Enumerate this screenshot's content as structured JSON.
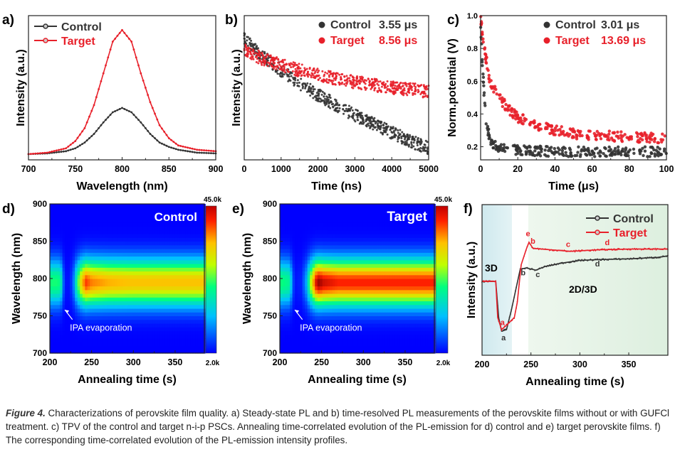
{
  "caption": {
    "label": "Figure 4.",
    "text": " Characterizations of perovskite film quality. a) Steady-state PL and b) time-resolved PL measurements of the perovskite films without or with GUFCl treatment. c) TPV of the control and target n-i-p PSCs. Annealing time-correlated evolution of the PL-emission for d) control and e) target perovskite films. f) The corresponding time-correlated evolution of the PL-emission intensity profiles."
  },
  "colors": {
    "control": "#333333",
    "target": "#e8202a"
  },
  "chart_data": [
    {
      "panel": "a)",
      "type": "line",
      "xlabel": "Wavelength (nm)",
      "ylabel": "Intensity (a.u.)",
      "xlim": [
        700,
        900
      ],
      "ylim": [
        0,
        1
      ],
      "xticks": [
        "700",
        "750",
        "800",
        "850",
        "900"
      ],
      "yticks": [],
      "legend": "top-left",
      "x": [
        700,
        720,
        740,
        750,
        760,
        770,
        780,
        790,
        800,
        810,
        820,
        830,
        840,
        850,
        860,
        880,
        900
      ],
      "series": [
        {
          "name": "Control",
          "values": [
            0.04,
            0.045,
            0.06,
            0.08,
            0.12,
            0.18,
            0.26,
            0.33,
            0.36,
            0.33,
            0.26,
            0.18,
            0.12,
            0.09,
            0.07,
            0.05,
            0.045
          ]
        },
        {
          "name": "Target",
          "values": [
            0.04,
            0.05,
            0.08,
            0.13,
            0.22,
            0.38,
            0.6,
            0.82,
            0.9,
            0.82,
            0.6,
            0.4,
            0.24,
            0.15,
            0.1,
            0.07,
            0.06
          ]
        }
      ]
    },
    {
      "panel": "b)",
      "type": "scatter",
      "xlabel": "Time (ns)",
      "ylabel": "Intensity (a.u.)",
      "xlim": [
        0,
        5000
      ],
      "ylim": [
        0,
        1
      ],
      "xticks": [
        "0",
        "1000",
        "2000",
        "3000",
        "4000",
        "5000"
      ],
      "yticks": [],
      "legend": "top-right",
      "x": [
        0,
        500,
        1000,
        1500,
        2000,
        2500,
        3000,
        3500,
        4000,
        4500,
        5000
      ],
      "series": [
        {
          "name": "Control",
          "lifetime": "3.55 μs",
          "values": [
            0.84,
            0.72,
            0.62,
            0.53,
            0.45,
            0.38,
            0.31,
            0.25,
            0.19,
            0.13,
            0.08
          ]
        },
        {
          "name": "Target",
          "lifetime": "8.56 μs",
          "values": [
            0.76,
            0.7,
            0.66,
            0.62,
            0.59,
            0.56,
            0.54,
            0.52,
            0.5,
            0.49,
            0.47
          ]
        }
      ]
    },
    {
      "panel": "c)",
      "type": "scatter",
      "xlabel": "Time (μs)",
      "ylabel": "Norm.potential (V)",
      "xlim": [
        0,
        100
      ],
      "ylim": [
        0.12,
        1.0
      ],
      "xticks": [
        "0",
        "20",
        "40",
        "60",
        "80",
        "100"
      ],
      "yticks": [
        "0.2",
        "0.4",
        "0.6",
        "0.8",
        "1.0"
      ],
      "legend": "top-right",
      "series": [
        {
          "name": "Control",
          "lifetime": "3.01 μs",
          "x": [
            0,
            1,
            2,
            3,
            5,
            8,
            10,
            20,
            40,
            60,
            80,
            100
          ],
          "values": [
            0.95,
            0.7,
            0.5,
            0.35,
            0.25,
            0.2,
            0.19,
            0.18,
            0.17,
            0.17,
            0.17,
            0.17
          ]
        },
        {
          "name": "Target",
          "lifetime": "13.69 μs",
          "x": [
            0,
            2,
            5,
            10,
            15,
            20,
            30,
            40,
            50,
            60,
            80,
            100
          ],
          "values": [
            0.98,
            0.8,
            0.6,
            0.5,
            0.43,
            0.38,
            0.33,
            0.3,
            0.28,
            0.27,
            0.26,
            0.25
          ]
        }
      ]
    },
    {
      "panel": "d)",
      "type": "heatmap",
      "label": "Control",
      "xlabel": "Annealing time (s)",
      "ylabel": "Wavelength (nm)",
      "xlim": [
        200,
        385
      ],
      "ylim": [
        700,
        900
      ],
      "xticks": [
        "200",
        "250",
        "300",
        "350"
      ],
      "yticks": [
        "700",
        "750",
        "800",
        "850",
        "900"
      ],
      "colorbar": {
        "min": "2.0k",
        "max": "45.0k",
        "range": [
          2000,
          45000
        ]
      },
      "annotation": "IPA evaporation",
      "peak_wavelength_nm": 795,
      "band_sigma_nm": 22,
      "time": [
        200,
        210,
        213,
        216,
        219,
        224,
        228,
        233,
        238,
        243,
        250,
        270,
        300,
        385
      ],
      "peak_intensity": [
        22000,
        22000,
        20000,
        8000,
        3000,
        3000,
        8000,
        22000,
        33000,
        40000,
        37000,
        35000,
        34000,
        34000
      ]
    },
    {
      "panel": "e)",
      "type": "heatmap",
      "label": "Target",
      "xlabel": "Annealing time (s)",
      "ylabel": "Wavelength (nm)",
      "xlim": [
        200,
        385
      ],
      "ylim": [
        700,
        900
      ],
      "xticks": [
        "200",
        "250",
        "300",
        "350"
      ],
      "yticks": [
        "700",
        "750",
        "800",
        "850",
        "900"
      ],
      "colorbar": {
        "min": "2.0k",
        "max": "45.0k",
        "range": [
          2000,
          45000
        ]
      },
      "annotation": "IPA evaporation",
      "peak_wavelength_nm": 795,
      "band_sigma_nm": 22,
      "time": [
        200,
        212,
        215,
        218,
        226,
        232,
        238,
        243,
        247,
        252,
        270,
        385
      ],
      "peak_intensity": [
        22000,
        20000,
        8000,
        3000,
        4000,
        12000,
        30000,
        42000,
        45000,
        43000,
        41000,
        41000
      ]
    },
    {
      "panel": "f)",
      "type": "line",
      "xlabel": "Annealing time (s)",
      "ylabel": "Intensity (a.u.)",
      "xlim": [
        200,
        390
      ],
      "ylim": [
        0,
        1
      ],
      "xticks": [
        "200",
        "250",
        "300",
        "350"
      ],
      "yticks": [],
      "legend": "top-right",
      "regions": [
        "3D",
        "2D/3D"
      ],
      "series": [
        {
          "name": "Control",
          "x": [
            200,
            214,
            217,
            220,
            225,
            230,
            235,
            239,
            245,
            255,
            265,
            280,
            300,
            320,
            350,
            380,
            390
          ],
          "values": [
            0.49,
            0.49,
            0.25,
            0.16,
            0.17,
            0.3,
            0.45,
            0.57,
            0.58,
            0.565,
            0.59,
            0.61,
            0.63,
            0.635,
            0.64,
            0.65,
            0.66
          ],
          "markers": [
            {
              "label": "a",
              "x": 222,
              "y": 0.1
            },
            {
              "label": "b",
              "x": 242,
              "y": 0.53
            },
            {
              "label": "c",
              "x": 257,
              "y": 0.52
            },
            {
              "label": "d",
              "x": 318,
              "y": 0.59
            }
          ]
        },
        {
          "name": "Target",
          "x": [
            200,
            214,
            216,
            220,
            225,
            233,
            236,
            240,
            245,
            248,
            252,
            270,
            290,
            320,
            350,
            390
          ],
          "values": [
            0.49,
            0.49,
            0.25,
            0.17,
            0.2,
            0.25,
            0.35,
            0.6,
            0.7,
            0.75,
            0.71,
            0.7,
            0.69,
            0.7,
            0.705,
            0.705
          ],
          "markers": [
            {
              "label": "a",
              "x": 221,
              "y": 0.2
            },
            {
              "label": "e",
              "x": 247,
              "y": 0.79
            },
            {
              "label": "b",
              "x": 252,
              "y": 0.74
            },
            {
              "label": "c",
              "x": 288,
              "y": 0.72
            },
            {
              "label": "d",
              "x": 328,
              "y": 0.73
            }
          ]
        }
      ]
    }
  ]
}
